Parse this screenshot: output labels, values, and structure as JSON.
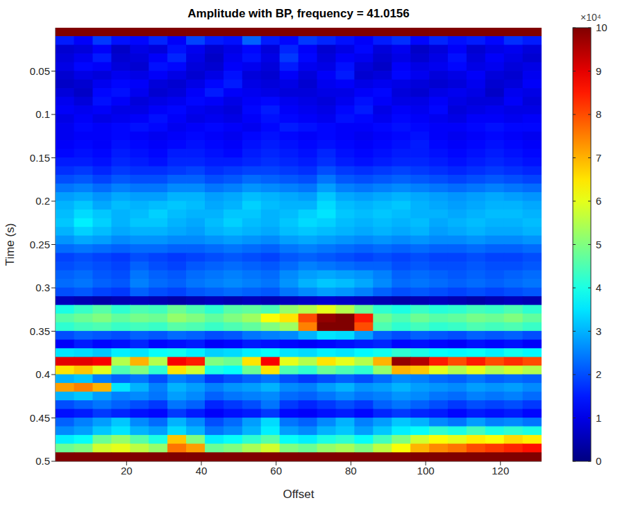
{
  "chart_data": {
    "type": "heatmap",
    "title": "Amplitude with BP, frequency = 41.0156",
    "x_label": "Offset",
    "y_label": "Time (s)",
    "xlim": [
      1,
      131
    ],
    "xticks": [
      20,
      40,
      60,
      80,
      100,
      120
    ],
    "ylim": [
      0,
      0.5
    ],
    "yticks": [
      0.05,
      0.1,
      0.15,
      0.2,
      0.25,
      0.3,
      0.35,
      0.4,
      0.45,
      0.5
    ],
    "x": [
      3.5,
      8.5,
      13.5,
      18.5,
      23.5,
      28.5,
      33.5,
      38.5,
      43.5,
      48.5,
      53.5,
      58.5,
      63.5,
      68.5,
      73.5,
      78.5,
      83.5,
      88.5,
      93.5,
      98.5,
      103.5,
      108.5,
      113.5,
      118.5,
      123.5,
      128.5
    ],
    "y": [
      0.005,
      0.015,
      0.025,
      0.035,
      0.045,
      0.055,
      0.065,
      0.075,
      0.085,
      0.095,
      0.105,
      0.115,
      0.125,
      0.135,
      0.145,
      0.155,
      0.165,
      0.175,
      0.185,
      0.195,
      0.205,
      0.215,
      0.225,
      0.235,
      0.245,
      0.255,
      0.265,
      0.275,
      0.285,
      0.295,
      0.305,
      0.315,
      0.325,
      0.335,
      0.345,
      0.355,
      0.365,
      0.375,
      0.385,
      0.395,
      0.405,
      0.415,
      0.425,
      0.435,
      0.445,
      0.455,
      0.465,
      0.475,
      0.485,
      0.495
    ],
    "cells": [
      [
        10,
        10,
        10,
        10,
        10,
        10,
        10,
        10,
        10,
        10,
        10,
        10,
        10,
        10,
        10,
        10,
        10,
        10,
        10,
        10,
        10,
        10,
        10,
        10,
        10,
        10
      ],
      [
        1.5,
        1.2,
        1.8,
        1.4,
        1.3,
        1.6,
        1.2,
        1.9,
        1.5,
        1.4,
        2.2,
        1.5,
        1.3,
        1.8,
        1.6,
        1.4,
        1.2,
        1.5,
        1.7,
        1.3,
        1.6,
        1.4,
        1.5,
        1.3,
        1.7,
        1.5
      ],
      [
        0.8,
        0.9,
        1.2,
        0.7,
        1.0,
        0.9,
        1.4,
        1.1,
        0.8,
        1.0,
        1.3,
        0.9,
        1.6,
        1.2,
        0.8,
        1.0,
        1.3,
        0.9,
        1.1,
        0.7,
        0.9,
        1.2,
        0.8,
        1.0,
        1.1,
        0.9
      ],
      [
        0.9,
        1.1,
        1.5,
        0.8,
        0.9,
        1.2,
        1.6,
        1.0,
        0.7,
        1.1,
        1.4,
        1.0,
        1.8,
        1.3,
        0.9,
        1.2,
        1.1,
        0.8,
        1.0,
        0.8,
        1.0,
        1.4,
        0.9,
        1.2,
        1.0,
        0.8
      ],
      [
        1.0,
        1.3,
        1.2,
        0.9,
        0.8,
        1.4,
        1.3,
        0.9,
        0.8,
        1.2,
        1.1,
        0.9,
        1.5,
        1.1,
        1.0,
        1.4,
        0.9,
        0.7,
        1.2,
        1.0,
        1.1,
        1.3,
        1.0,
        1.1,
        0.9,
        1.0
      ],
      [
        0.8,
        1.0,
        0.9,
        1.1,
        1.0,
        1.2,
        1.0,
        0.8,
        1.0,
        1.4,
        0.9,
        0.8,
        1.2,
        0.9,
        1.2,
        1.5,
        0.8,
        0.9,
        1.3,
        1.1,
        0.9,
        1.0,
        1.2,
        0.9,
        0.8,
        1.1
      ],
      [
        0.7,
        0.8,
        1.1,
        1.3,
        1.2,
        0.9,
        0.8,
        1.0,
        1.3,
        1.5,
        1.0,
        0.9,
        1.0,
        0.8,
        1.1,
        1.2,
        1.0,
        1.1,
        1.0,
        0.9,
        0.8,
        0.9,
        1.1,
        0.8,
        0.9,
        1.2
      ],
      [
        0.9,
        0.7,
        1.3,
        1.4,
        1.1,
        0.8,
        0.9,
        1.2,
        1.5,
        1.2,
        1.1,
        1.0,
        0.9,
        0.9,
        1.0,
        1.0,
        1.2,
        1.3,
        0.9,
        0.8,
        1.0,
        1.1,
        1.0,
        0.7,
        1.1,
        1.0
      ],
      [
        1.1,
        0.9,
        1.4,
        1.2,
        0.9,
        1.0,
        1.1,
        1.3,
        1.2,
        1.0,
        1.2,
        1.3,
        1.1,
        1.0,
        0.9,
        1.1,
        1.4,
        1.2,
        1.0,
        1.0,
        1.2,
        1.0,
        0.9,
        0.9,
        1.2,
        0.9
      ],
      [
        1.2,
        1.1,
        1.2,
        1.0,
        1.0,
        1.2,
        1.3,
        1.1,
        1.0,
        0.9,
        1.3,
        1.5,
        1.2,
        1.1,
        1.0,
        1.3,
        1.5,
        1.0,
        1.2,
        1.1,
        1.3,
        0.9,
        1.0,
        1.1,
        1.0,
        1.0
      ],
      [
        1.0,
        1.2,
        1.0,
        1.1,
        1.2,
        1.4,
        1.2,
        1.0,
        1.1,
        1.0,
        1.2,
        1.4,
        1.3,
        1.2,
        1.1,
        1.4,
        1.3,
        1.1,
        1.3,
        1.2,
        1.1,
        1.0,
        1.2,
        1.2,
        1.1,
        1.2
      ],
      [
        1.1,
        1.3,
        1.2,
        1.3,
        1.4,
        1.3,
        1.1,
        1.2,
        1.3,
        1.2,
        1.1,
        1.3,
        1.5,
        1.4,
        1.3,
        1.2,
        1.2,
        1.3,
        1.4,
        1.3,
        1.2,
        1.2,
        1.3,
        1.4,
        1.3,
        1.3
      ],
      [
        1.1,
        1.2,
        1.2,
        1.3,
        1.2,
        1.1,
        1.2,
        1.3,
        1.2,
        1.1,
        1.3,
        1.4,
        1.3,
        1.2,
        1.3,
        1.2,
        1.1,
        1.2,
        1.3,
        1.4,
        1.2,
        1.1,
        1.2,
        1.3,
        1.2,
        1.1
      ],
      [
        1.2,
        1.3,
        1.2,
        1.4,
        1.3,
        1.2,
        1.3,
        1.4,
        1.3,
        1.2,
        1.4,
        1.5,
        1.4,
        1.3,
        1.4,
        1.3,
        1.2,
        1.3,
        1.4,
        1.5,
        1.3,
        1.2,
        1.3,
        1.4,
        1.3,
        1.2
      ],
      [
        1.3,
        1.4,
        1.3,
        1.5,
        1.4,
        1.3,
        1.5,
        1.5,
        1.4,
        1.3,
        1.5,
        1.6,
        1.5,
        1.4,
        1.6,
        1.4,
        1.3,
        1.4,
        1.5,
        1.5,
        1.4,
        1.3,
        1.4,
        1.5,
        1.4,
        1.3
      ],
      [
        1.5,
        1.5,
        1.4,
        1.6,
        1.5,
        1.4,
        1.6,
        1.6,
        1.5,
        1.5,
        1.6,
        1.7,
        1.6,
        1.5,
        1.7,
        1.5,
        1.4,
        1.5,
        1.6,
        1.6,
        1.5,
        1.4,
        1.5,
        1.6,
        1.5,
        1.4
      ],
      [
        1.7,
        1.8,
        1.6,
        1.8,
        1.7,
        1.7,
        1.8,
        1.9,
        1.7,
        1.8,
        1.9,
        1.9,
        1.8,
        1.7,
        2.0,
        1.8,
        1.7,
        1.8,
        1.9,
        1.8,
        1.7,
        1.6,
        1.7,
        1.8,
        1.7,
        1.6
      ],
      [
        2.0,
        2.1,
        1.9,
        2.1,
        2.0,
        2.0,
        2.2,
        2.2,
        2.0,
        2.1,
        2.3,
        2.2,
        2.1,
        2.0,
        2.4,
        2.1,
        2.0,
        2.1,
        2.2,
        2.1,
        2.0,
        1.9,
        2.0,
        2.1,
        2.0,
        1.9
      ],
      [
        2.4,
        2.5,
        2.3,
        2.5,
        2.4,
        2.4,
        2.6,
        2.6,
        2.4,
        2.5,
        2.7,
        2.6,
        2.5,
        2.4,
        2.8,
        2.5,
        2.4,
        2.5,
        2.6,
        2.5,
        2.4,
        2.3,
        2.4,
        2.5,
        2.4,
        2.3
      ],
      [
        2.8,
        2.9,
        2.7,
        2.9,
        2.8,
        2.8,
        3.0,
        3.0,
        2.8,
        2.9,
        3.1,
        3.0,
        2.9,
        2.8,
        3.2,
        2.9,
        2.8,
        2.9,
        3.0,
        2.9,
        2.8,
        2.7,
        2.8,
        2.9,
        2.8,
        2.7
      ],
      [
        3.0,
        3.2,
        2.9,
        3.1,
        3.0,
        3.1,
        3.2,
        3.1,
        2.9,
        3.0,
        3.3,
        3.1,
        3.0,
        3.0,
        3.4,
        3.1,
        3.0,
        3.1,
        3.2,
        3.0,
        2.9,
        2.8,
        2.9,
        3.0,
        3.0,
        2.9
      ],
      [
        3.1,
        3.4,
        3.2,
        3.0,
        3.1,
        3.3,
        3.1,
        3.0,
        3.0,
        3.2,
        3.2,
        3.0,
        3.1,
        3.3,
        3.5,
        3.2,
        3.1,
        3.2,
        3.1,
        3.0,
        3.0,
        2.9,
        3.0,
        3.1,
        3.1,
        3.0
      ],
      [
        3.2,
        3.6,
        3.3,
        3.0,
        3.2,
        3.2,
        3.0,
        2.9,
        3.1,
        3.3,
        3.1,
        3.0,
        3.2,
        3.4,
        3.3,
        3.1,
        3.0,
        3.1,
        3.0,
        3.1,
        2.9,
        3.0,
        3.1,
        3.0,
        3.0,
        3.1
      ],
      [
        3.0,
        3.3,
        3.1,
        2.9,
        3.0,
        3.0,
        2.9,
        2.8,
        3.0,
        3.1,
        3.0,
        2.9,
        3.1,
        3.2,
        3.1,
        3.0,
        2.9,
        3.0,
        2.9,
        3.0,
        2.8,
        2.9,
        3.0,
        2.9,
        2.9,
        3.0
      ],
      [
        2.7,
        2.9,
        2.8,
        2.6,
        2.7,
        2.7,
        2.6,
        2.6,
        2.7,
        2.8,
        2.7,
        2.6,
        2.8,
        2.9,
        2.8,
        2.7,
        2.6,
        2.7,
        2.6,
        2.7,
        2.6,
        2.6,
        2.7,
        2.6,
        2.6,
        2.7
      ],
      [
        2.3,
        2.4,
        2.3,
        2.2,
        2.3,
        2.3,
        2.2,
        2.2,
        2.3,
        2.4,
        2.3,
        2.2,
        2.4,
        2.5,
        2.4,
        2.3,
        2.2,
        2.3,
        2.2,
        2.3,
        2.2,
        2.2,
        2.3,
        2.2,
        2.2,
        2.3
      ],
      [
        1.9,
        2.0,
        1.9,
        1.8,
        2.0,
        1.9,
        1.8,
        1.9,
        2.0,
        2.1,
        2.0,
        1.9,
        2.1,
        2.2,
        2.1,
        2.0,
        1.9,
        2.0,
        1.9,
        2.0,
        1.9,
        1.9,
        2.0,
        1.9,
        1.9,
        2.0
      ],
      [
        2.0,
        2.1,
        2.0,
        1.9,
        2.2,
        2.0,
        1.9,
        2.1,
        2.2,
        2.3,
        2.2,
        2.1,
        2.3,
        2.5,
        2.4,
        2.3,
        2.2,
        2.2,
        2.0,
        2.1,
        2.0,
        2.0,
        2.1,
        2.0,
        2.0,
        2.1
      ],
      [
        2.2,
        2.3,
        2.1,
        2.0,
        2.4,
        2.2,
        2.1,
        2.3,
        2.4,
        2.5,
        2.4,
        2.3,
        2.6,
        2.8,
        2.9,
        2.8,
        2.7,
        2.5,
        2.2,
        2.3,
        2.2,
        2.1,
        2.2,
        2.1,
        2.2,
        2.3
      ],
      [
        2.3,
        2.4,
        2.2,
        2.1,
        2.5,
        2.3,
        2.2,
        2.4,
        2.5,
        2.6,
        2.5,
        2.4,
        2.7,
        3.0,
        3.2,
        3.1,
        2.9,
        2.6,
        2.3,
        2.4,
        2.3,
        2.2,
        2.3,
        2.2,
        2.3,
        2.4
      ],
      [
        2.0,
        2.1,
        1.9,
        1.8,
        2.2,
        2.0,
        1.9,
        2.1,
        2.2,
        2.3,
        2.2,
        2.1,
        2.4,
        2.6,
        2.8,
        2.7,
        2.5,
        2.2,
        2.0,
        2.1,
        2.0,
        1.9,
        2.0,
        1.9,
        2.0,
        2.1
      ],
      [
        0.6,
        0.5,
        0.4,
        0.5,
        0.6,
        0.5,
        0.4,
        0.5,
        0.6,
        0.5,
        0.6,
        0.5,
        0.6,
        0.7,
        0.8,
        0.7,
        0.6,
        0.5,
        0.4,
        0.5,
        0.6,
        0.5,
        0.4,
        0.5,
        0.6,
        0.5
      ],
      [
        4.0,
        4.3,
        4.6,
        4.2,
        4.5,
        4.4,
        4.8,
        4.5,
        4.2,
        4.6,
        4.7,
        4.5,
        5.2,
        5.5,
        6.0,
        5.5,
        4.8,
        4.2,
        4.0,
        4.3,
        4.1,
        4.2,
        4.4,
        4.3,
        4.5,
        4.2
      ],
      [
        4.6,
        4.8,
        5.0,
        4.7,
        4.9,
        4.8,
        5.2,
        5.0,
        4.7,
        5.0,
        5.3,
        6.2,
        6.5,
        8.0,
        9.8,
        10,
        8.5,
        4.8,
        4.5,
        4.8,
        4.6,
        4.7,
        4.9,
        4.8,
        5.0,
        4.7
      ],
      [
        4.2,
        4.4,
        4.5,
        4.3,
        4.4,
        4.3,
        4.6,
        4.5,
        4.3,
        4.5,
        4.7,
        5.0,
        5.3,
        7.5,
        10,
        10,
        8.0,
        4.5,
        4.2,
        4.4,
        4.2,
        4.3,
        4.5,
        4.4,
        4.5,
        4.3
      ],
      [
        2.0,
        2.2,
        2.1,
        2.0,
        2.2,
        2.1,
        2.3,
        2.2,
        2.0,
        2.1,
        2.4,
        2.5,
        2.6,
        3.0,
        3.5,
        3.4,
        2.8,
        2.2,
        2.0,
        2.2,
        2.1,
        2.0,
        2.2,
        2.1,
        2.2,
        2.0
      ],
      [
        1.2,
        1.5,
        1.3,
        1.4,
        1.6,
        1.3,
        1.4,
        1.5,
        1.2,
        1.3,
        1.5,
        1.4,
        1.3,
        1.2,
        1.3,
        1.4,
        1.5,
        1.6,
        1.3,
        1.4,
        1.3,
        1.2,
        1.4,
        1.3,
        1.4,
        1.2
      ],
      [
        3.5,
        3.4,
        3.2,
        3.6,
        3.5,
        3.8,
        3.9,
        3.6,
        3.3,
        3.4,
        3.6,
        3.8,
        3.5,
        3.4,
        3.6,
        3.5,
        3.7,
        3.9,
        4.2,
        4.0,
        3.8,
        3.7,
        3.8,
        3.6,
        3.9,
        3.7
      ],
      [
        9.0,
        9.0,
        8.8,
        5.5,
        7.0,
        5.5,
        8.8,
        8.5,
        5.0,
        4.8,
        6.5,
        8.8,
        6.0,
        5.5,
        6.5,
        6.0,
        5.5,
        7.0,
        9.8,
        9.5,
        8.5,
        8.0,
        8.5,
        8.0,
        8.3,
        8.0
      ],
      [
        6.5,
        6.8,
        6.0,
        4.5,
        5.0,
        4.2,
        6.5,
        5.8,
        4.0,
        3.8,
        4.8,
        6.5,
        4.5,
        4.2,
        4.8,
        4.5,
        4.2,
        5.2,
        7.0,
        6.8,
        6.0,
        5.5,
        6.0,
        5.5,
        5.8,
        5.5
      ],
      [
        3.0,
        3.2,
        2.5,
        2.2,
        2.4,
        2.0,
        2.5,
        2.3,
        1.8,
        2.0,
        2.2,
        2.4,
        2.0,
        1.8,
        2.0,
        2.2,
        2.0,
        2.3,
        2.6,
        2.5,
        2.3,
        2.2,
        2.4,
        2.2,
        2.3,
        2.2
      ],
      [
        7.2,
        7.5,
        7.0,
        3.5,
        3.0,
        2.5,
        3.0,
        2.8,
        2.5,
        2.7,
        2.8,
        3.0,
        2.6,
        2.5,
        2.8,
        3.0,
        2.7,
        2.8,
        3.0,
        2.8,
        2.7,
        2.6,
        2.8,
        2.7,
        2.8,
        2.6
      ],
      [
        3.0,
        3.2,
        2.8,
        2.5,
        2.6,
        2.4,
        2.8,
        2.6,
        2.2,
        2.4,
        2.5,
        2.6,
        2.3,
        2.2,
        2.4,
        2.6,
        2.4,
        2.5,
        2.7,
        2.6,
        2.4,
        2.3,
        2.5,
        2.4,
        2.5,
        2.3
      ],
      [
        2.0,
        2.2,
        2.4,
        2.2,
        2.0,
        1.8,
        2.4,
        2.2,
        1.6,
        1.8,
        2.0,
        2.4,
        1.8,
        1.6,
        1.8,
        2.0,
        1.8,
        2.2,
        2.4,
        2.2,
        2.0,
        1.8,
        2.0,
        1.9,
        2.0,
        1.8
      ],
      [
        1.4,
        1.5,
        1.8,
        1.6,
        1.4,
        1.3,
        1.8,
        1.5,
        1.2,
        1.4,
        1.5,
        1.8,
        1.3,
        1.2,
        1.4,
        1.5,
        1.3,
        1.6,
        1.8,
        1.6,
        1.5,
        1.3,
        1.5,
        1.4,
        1.5,
        1.3
      ],
      [
        2.2,
        2.5,
        2.8,
        3.2,
        2.6,
        2.3,
        3.0,
        2.6,
        2.0,
        2.3,
        2.8,
        3.4,
        2.4,
        2.2,
        2.6,
        3.0,
        2.5,
        2.8,
        3.2,
        3.0,
        2.6,
        2.4,
        2.8,
        2.5,
        2.6,
        2.4
      ],
      [
        2.6,
        2.8,
        3.2,
        3.5,
        3.0,
        2.8,
        3.4,
        3.0,
        2.4,
        2.6,
        3.0,
        3.6,
        2.8,
        2.6,
        3.0,
        3.2,
        2.8,
        3.2,
        3.6,
        3.8,
        4.2,
        4.0,
        4.4,
        4.0,
        4.2,
        4.0
      ],
      [
        3.6,
        3.8,
        4.8,
        5.2,
        4.6,
        4.0,
        6.8,
        5.0,
        3.6,
        3.8,
        4.2,
        4.6,
        3.8,
        3.6,
        4.0,
        4.2,
        3.8,
        4.4,
        5.0,
        5.8,
        6.2,
        6.0,
        6.4,
        6.2,
        6.6,
        6.4
      ],
      [
        4.8,
        5.0,
        5.8,
        6.0,
        5.6,
        5.2,
        7.6,
        7.2,
        4.8,
        5.0,
        5.4,
        5.8,
        5.0,
        4.8,
        5.2,
        5.4,
        5.0,
        5.6,
        6.2,
        7.0,
        7.4,
        7.6,
        8.0,
        8.2,
        8.4,
        8.6
      ],
      [
        10,
        10,
        10,
        10,
        10,
        10,
        10,
        10,
        10,
        10,
        10,
        10,
        10,
        10,
        10,
        10,
        10,
        10,
        10,
        10,
        10,
        10,
        10,
        10,
        10,
        10
      ]
    ],
    "colorbar": {
      "range": [
        0,
        10
      ],
      "ticks": [
        0,
        1,
        2,
        3,
        4,
        5,
        6,
        7,
        8,
        9,
        10
      ],
      "label": "×10⁴"
    }
  }
}
